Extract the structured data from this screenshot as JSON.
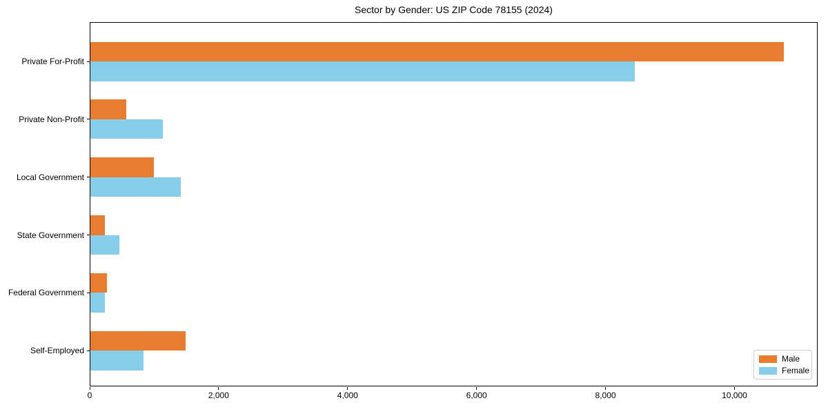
{
  "chart_data": {
    "type": "bar",
    "orientation": "horizontal",
    "title": "Sector by Gender: US ZIP Code 78155 (2024)",
    "xlabel": "",
    "ylabel": "",
    "categories": [
      "Private For-Profit",
      "Private Non-Profit",
      "Local Government",
      "State Government",
      "Federal Government",
      "Self-Employed"
    ],
    "series": [
      {
        "name": "Male",
        "color": "#e87d32",
        "values": [
          10750,
          555,
          980,
          225,
          260,
          1480
        ]
      },
      {
        "name": "Female",
        "color": "#87ceeb",
        "values": [
          8440,
          1120,
          1400,
          445,
          225,
          825
        ]
      }
    ],
    "xlim": [
      0,
      11290
    ],
    "xticks": [
      0,
      2000,
      4000,
      6000,
      8000,
      10000
    ],
    "xtick_labels": [
      "0",
      "2,000",
      "4,000",
      "6,000",
      "8,000",
      "10,000"
    ],
    "grid": false,
    "legend": {
      "position": "lower right",
      "border_color": "#cccccc"
    }
  }
}
